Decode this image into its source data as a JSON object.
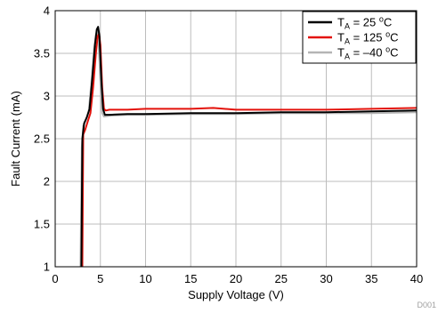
{
  "chart_data": {
    "type": "line",
    "title": "",
    "xlabel": "Supply Voltage (V)",
    "ylabel": "Fault Current (mA)",
    "xlim": [
      0,
      40
    ],
    "ylim": [
      1,
      4
    ],
    "xticks": [
      0,
      5,
      10,
      15,
      20,
      25,
      30,
      35,
      40
    ],
    "yticks": [
      1,
      1.5,
      2,
      2.5,
      3,
      3.5,
      4
    ],
    "xtick_labels": [
      "0",
      "5",
      "10",
      "15",
      "20",
      "25",
      "30",
      "35",
      "40"
    ],
    "ytick_labels": [
      "1",
      "1.5",
      "2",
      "2.5",
      "3",
      "3.5",
      "4"
    ],
    "grid": true,
    "legend_position": "top-right",
    "figure_id": "D001",
    "series": [
      {
        "name": "TA = 25 oC",
        "legend": {
          "main": "T",
          "sub": "A",
          "mid": " = 25 ",
          "sup": "o",
          "tail": "C"
        },
        "color": "#000000",
        "x": [
          2.9,
          3.0,
          3.2,
          3.5,
          3.8,
          4.1,
          4.4,
          4.6,
          4.75,
          4.9,
          5.1,
          5.3,
          5.5,
          6,
          8,
          10,
          15,
          20,
          25,
          30,
          35,
          40
        ],
        "y": [
          1.0,
          2.5,
          2.68,
          2.75,
          2.85,
          3.2,
          3.6,
          3.78,
          3.81,
          3.7,
          3.2,
          2.85,
          2.78,
          2.78,
          2.79,
          2.79,
          2.8,
          2.8,
          2.81,
          2.81,
          2.82,
          2.83
        ]
      },
      {
        "name": "TA = 125 oC",
        "legend": {
          "main": "T",
          "sub": "A",
          "mid": " = 125 ",
          "sup": "o",
          "tail": "C"
        },
        "color": "#e3120b",
        "x": [
          3.0,
          3.1,
          3.3,
          3.6,
          3.9,
          4.2,
          4.5,
          4.7,
          4.85,
          5.0,
          5.2,
          5.4,
          5.6,
          6,
          8,
          10,
          15,
          17.5,
          20,
          25,
          30,
          35,
          40
        ],
        "y": [
          1.0,
          2.55,
          2.6,
          2.7,
          2.8,
          3.1,
          3.5,
          3.7,
          3.73,
          3.6,
          3.1,
          2.85,
          2.83,
          2.84,
          2.84,
          2.85,
          2.85,
          2.86,
          2.84,
          2.84,
          2.84,
          2.85,
          2.86
        ]
      },
      {
        "name": "TA = -40 oC",
        "legend": {
          "main": "T",
          "sub": "A",
          "mid": " = –40 ",
          "sup": "o",
          "tail": "C"
        },
        "color": "#b4b4b4",
        "x": [
          2.8,
          2.95,
          3.1,
          3.4,
          3.7,
          4.0,
          4.3,
          4.5,
          4.65,
          4.8,
          5.0,
          5.2,
          5.4,
          6,
          8,
          10,
          15,
          20,
          25,
          30,
          35,
          40
        ],
        "y": [
          1.0,
          2.4,
          2.65,
          2.72,
          2.82,
          3.15,
          3.55,
          3.72,
          3.76,
          3.65,
          3.15,
          2.8,
          2.76,
          2.77,
          2.78,
          2.78,
          2.79,
          2.79,
          2.8,
          2.8,
          2.8,
          2.81
        ]
      }
    ]
  }
}
